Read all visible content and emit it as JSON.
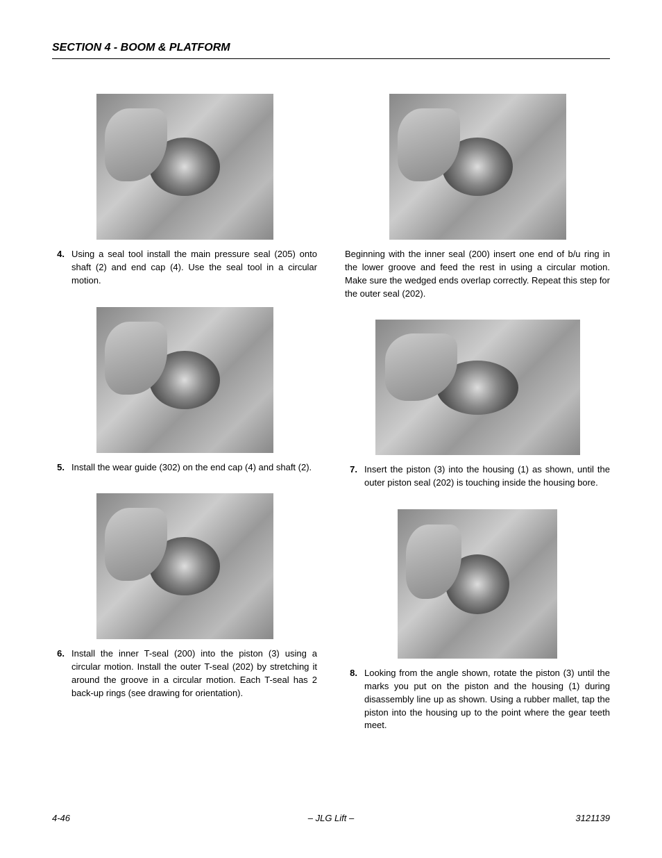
{
  "header": {
    "section_title": "SECTION 4 - BOOM & PLATFORM"
  },
  "left_column": {
    "step4": {
      "num": "4.",
      "text": "Using a seal tool install the main pressure seal (205) onto shaft (2) and end cap (4). Use the seal tool in a circular motion."
    },
    "step5": {
      "num": "5.",
      "text": "Install the wear guide (302) on the end cap (4) and shaft (2)."
    },
    "step6": {
      "num": "6.",
      "text": "Install the inner T-seal (200) into the piston (3) using a circular motion. Install the outer T-seal (202) by stretching it around the groove in a circular motion. Each T-seal has 2 back-up rings (see drawing for orientation)."
    }
  },
  "right_column": {
    "continuation": "Beginning with the inner seal (200) insert one end of b/u ring in the lower groove and feed the rest in using a circular motion. Make sure the wedged ends overlap correctly. Repeat this step for the outer seal (202).",
    "step7": {
      "num": "7.",
      "text": "Insert the piston (3) into the housing (1) as shown, until the outer piston seal (202) is touching inside the housing bore."
    },
    "step8": {
      "num": "8.",
      "text": "Looking from the angle shown, rotate the piston (3) until the marks you put on the piston and the housing (1) during disassembly line up as shown. Using a rubber mallet, tap the piston into the housing up to the point where the gear teeth meet."
    }
  },
  "footer": {
    "page_num": "4-46",
    "center": "– JLG Lift –",
    "doc_num": "3121139"
  }
}
